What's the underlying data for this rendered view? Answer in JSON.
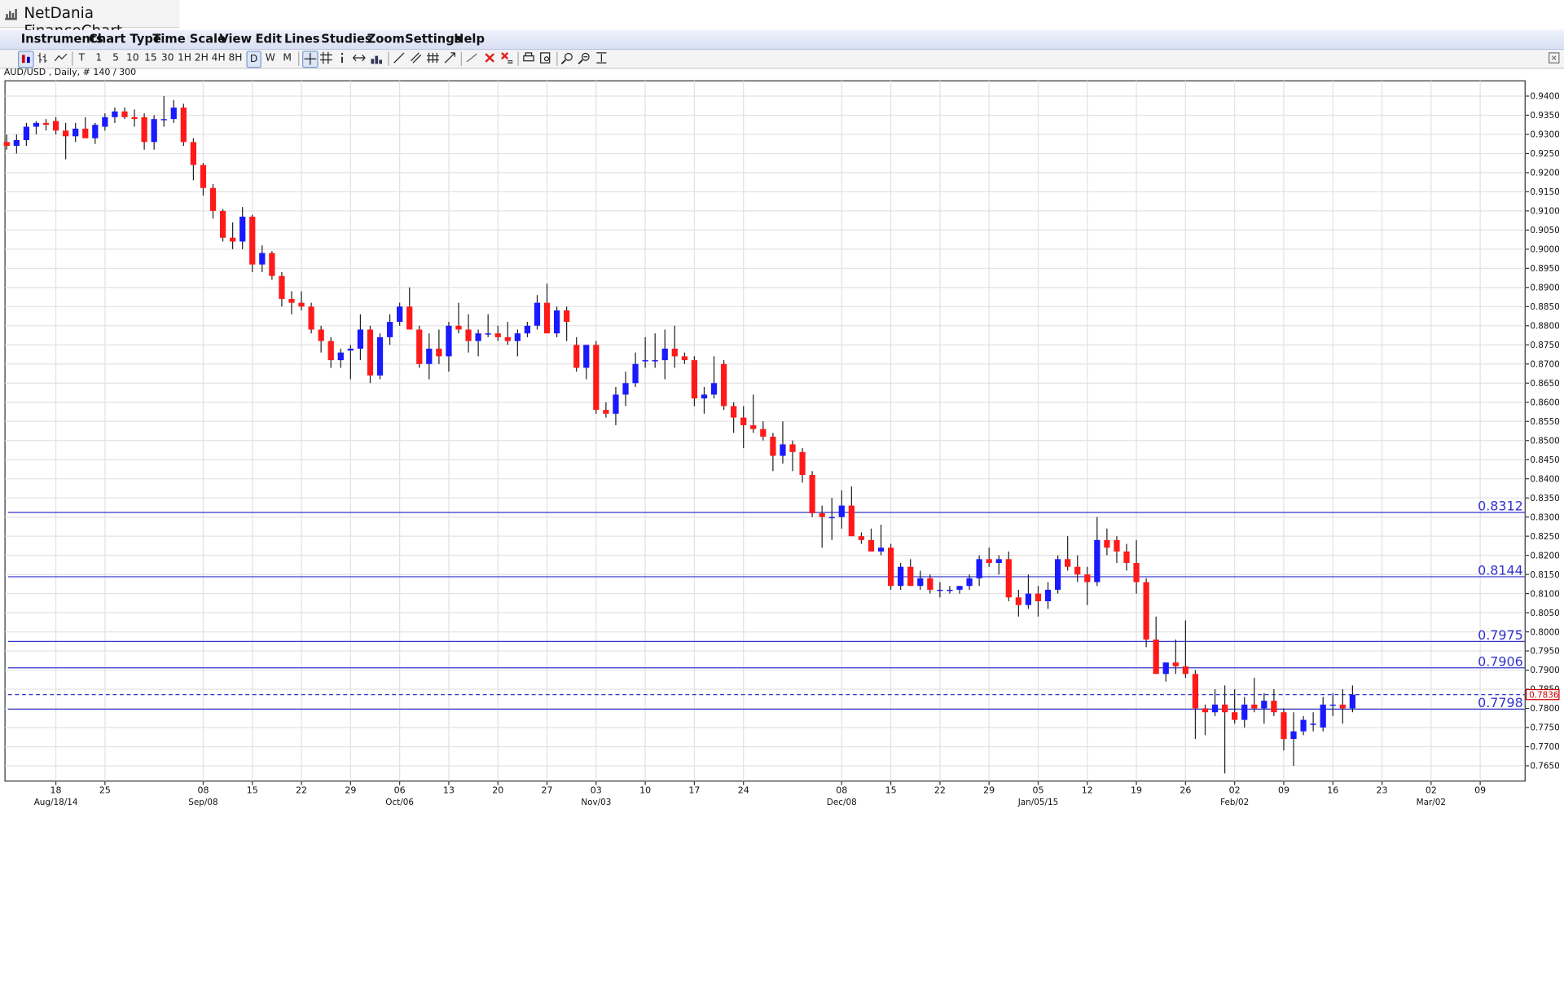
{
  "app": {
    "title": "NetDania FinanceChart"
  },
  "menu": [
    "Instruments",
    "Chart Type",
    "Time Scale",
    "View",
    "Edit",
    "Lines",
    "Studies",
    "Zoom",
    "Settings",
    "Help"
  ],
  "toolbar": {
    "timeframes": [
      "T",
      "1",
      "5",
      "10",
      "15",
      "30",
      "1H",
      "2H",
      "4H",
      "8H",
      "D",
      "W",
      "M"
    ],
    "selected": "D",
    "icons": [
      "candle-chart-icon",
      "ohlc-bar-icon",
      "line-chart-icon",
      "crosshair-icon",
      "grid-icon",
      "info-icon",
      "move-icon",
      "volume-icon",
      "trend-line-icon",
      "trend-channel-icon",
      "fibonacci-icon",
      "arrow-line-icon",
      "draw-line-icon",
      "delete-icon",
      "delete-all-icon",
      "print-icon",
      "print-preview-icon",
      "zoom-in-icon",
      "zoom-out-icon",
      "zoom-fit-icon"
    ]
  },
  "info": "AUD/USD , Daily, # 140 / 300",
  "colors": {
    "up": "#1a1aff",
    "down": "#ff1a1a",
    "level": "#3333cc",
    "grid": "#e2e2e2",
    "current": "#cc0000"
  },
  "chart_data": {
    "type": "candlestick",
    "symbol": "AUD/USD",
    "interval": "Daily",
    "start_date": "2014-08-13",
    "ylim": [
      0.761,
      0.944
    ],
    "yticks": [
      "0.9400",
      "0.9350",
      "0.9300",
      "0.9250",
      "0.9200",
      "0.9150",
      "0.9100",
      "0.9050",
      "0.9000",
      "0.8950",
      "0.8900",
      "0.8850",
      "0.8800",
      "0.8750",
      "0.8700",
      "0.8650",
      "0.8600",
      "0.8550",
      "0.8500",
      "0.8450",
      "0.8400",
      "0.8350",
      "0.8300",
      "0.8250",
      "0.8200",
      "0.8150",
      "0.8100",
      "0.8050",
      "0.8000",
      "0.7950",
      "0.7900",
      "0.7850",
      "0.7800",
      "0.7750",
      "0.7700",
      "0.7650"
    ],
    "xticks": [
      {
        "date": "2014-08-18",
        "label": "18",
        "sub": "Aug/18/14"
      },
      {
        "date": "2014-08-25",
        "label": "25",
        "sub": ""
      },
      {
        "date": "2014-09-08",
        "label": "08",
        "sub": "Sep/08"
      },
      {
        "date": "2014-09-15",
        "label": "15",
        "sub": ""
      },
      {
        "date": "2014-09-22",
        "label": "22",
        "sub": ""
      },
      {
        "date": "2014-09-29",
        "label": "29",
        "sub": ""
      },
      {
        "date": "2014-10-06",
        "label": "06",
        "sub": "Oct/06"
      },
      {
        "date": "2014-10-13",
        "label": "13",
        "sub": ""
      },
      {
        "date": "2014-10-20",
        "label": "20",
        "sub": ""
      },
      {
        "date": "2014-10-27",
        "label": "27",
        "sub": ""
      },
      {
        "date": "2014-11-03",
        "label": "03",
        "sub": "Nov/03"
      },
      {
        "date": "2014-11-10",
        "label": "10",
        "sub": ""
      },
      {
        "date": "2014-11-17",
        "label": "17",
        "sub": ""
      },
      {
        "date": "2014-11-24",
        "label": "24",
        "sub": ""
      },
      {
        "date": "2014-12-08",
        "label": "08",
        "sub": "Dec/08"
      },
      {
        "date": "2014-12-15",
        "label": "15",
        "sub": ""
      },
      {
        "date": "2014-12-22",
        "label": "22",
        "sub": ""
      },
      {
        "date": "2014-12-29",
        "label": "29",
        "sub": ""
      },
      {
        "date": "2015-01-05",
        "label": "05",
        "sub": "Jan/05/15"
      },
      {
        "date": "2015-01-12",
        "label": "12",
        "sub": ""
      },
      {
        "date": "2015-01-19",
        "label": "19",
        "sub": ""
      },
      {
        "date": "2015-01-26",
        "label": "26",
        "sub": ""
      },
      {
        "date": "2015-02-02",
        "label": "02",
        "sub": "Feb/02"
      },
      {
        "date": "2015-02-09",
        "label": "09",
        "sub": ""
      },
      {
        "date": "2015-02-16",
        "label": "16",
        "sub": ""
      },
      {
        "date": "2015-02-23",
        "label": "23",
        "sub": ""
      },
      {
        "date": "2015-03-02",
        "label": "02",
        "sub": "Mar/02"
      },
      {
        "date": "2015-03-09",
        "label": "09",
        "sub": ""
      }
    ],
    "levels": [
      {
        "value": 0.8312,
        "label": "0.8312"
      },
      {
        "value": 0.8144,
        "label": "0.8144"
      },
      {
        "value": 0.7975,
        "label": "0.7975"
      },
      {
        "value": 0.7906,
        "label": "0.7906"
      },
      {
        "value": 0.7798,
        "label": "0.7798"
      }
    ],
    "current": {
      "value": 0.7836,
      "label": "0.7836"
    },
    "candles_ohlc": [
      [
        0.928,
        0.93,
        0.926,
        0.927
      ],
      [
        0.927,
        0.93,
        0.925,
        0.9285
      ],
      [
        0.9285,
        0.933,
        0.927,
        0.932
      ],
      [
        0.932,
        0.9335,
        0.93,
        0.933
      ],
      [
        0.933,
        0.934,
        0.931,
        0.9325
      ],
      [
        0.9335,
        0.9345,
        0.93,
        0.931
      ],
      [
        0.931,
        0.933,
        0.9235,
        0.9295
      ],
      [
        0.9295,
        0.933,
        0.928,
        0.9315
      ],
      [
        0.9315,
        0.9345,
        0.9295,
        0.929
      ],
      [
        0.929,
        0.933,
        0.9275,
        0.9325
      ],
      [
        0.932,
        0.9355,
        0.931,
        0.9345
      ],
      [
        0.9345,
        0.937,
        0.933,
        0.936
      ],
      [
        0.936,
        0.937,
        0.934,
        0.9345
      ],
      [
        0.9345,
        0.9365,
        0.932,
        0.934
      ],
      [
        0.9345,
        0.9355,
        0.926,
        0.928
      ],
      [
        0.928,
        0.935,
        0.926,
        0.934
      ],
      [
        0.934,
        0.94,
        0.932,
        0.934
      ],
      [
        0.934,
        0.939,
        0.933,
        0.937
      ],
      [
        0.937,
        0.938,
        0.927,
        0.928
      ],
      [
        0.928,
        0.929,
        0.918,
        0.922
      ],
      [
        0.922,
        0.9225,
        0.914,
        0.916
      ],
      [
        0.916,
        0.917,
        0.908,
        0.91
      ],
      [
        0.91,
        0.9105,
        0.902,
        0.903
      ],
      [
        0.903,
        0.907,
        0.9,
        0.902
      ],
      [
        0.902,
        0.911,
        0.9,
        0.9085
      ],
      [
        0.9085,
        0.909,
        0.894,
        0.896
      ],
      [
        0.896,
        0.901,
        0.894,
        0.899
      ],
      [
        0.899,
        0.8995,
        0.892,
        0.893
      ],
      [
        0.893,
        0.894,
        0.885,
        0.887
      ],
      [
        0.887,
        0.889,
        0.883,
        0.886
      ],
      [
        0.886,
        0.889,
        0.884,
        0.885
      ],
      [
        0.885,
        0.886,
        0.878,
        0.879
      ],
      [
        0.879,
        0.88,
        0.873,
        0.876
      ],
      [
        0.876,
        0.877,
        0.869,
        0.871
      ],
      [
        0.871,
        0.874,
        0.869,
        0.873
      ],
      [
        0.8735,
        0.875,
        0.866,
        0.874
      ],
      [
        0.874,
        0.883,
        0.871,
        0.879
      ],
      [
        0.879,
        0.88,
        0.865,
        0.867
      ],
      [
        0.867,
        0.878,
        0.866,
        0.877
      ],
      [
        0.877,
        0.883,
        0.875,
        0.881
      ],
      [
        0.881,
        0.886,
        0.88,
        0.885
      ],
      [
        0.885,
        0.89,
        0.879,
        0.879
      ],
      [
        0.879,
        0.88,
        0.869,
        0.87
      ],
      [
        0.87,
        0.878,
        0.866,
        0.874
      ],
      [
        0.874,
        0.879,
        0.87,
        0.872
      ],
      [
        0.872,
        0.881,
        0.868,
        0.88
      ],
      [
        0.88,
        0.886,
        0.878,
        0.879
      ],
      [
        0.879,
        0.883,
        0.873,
        0.876
      ],
      [
        0.876,
        0.879,
        0.872,
        0.878
      ],
      [
        0.878,
        0.883,
        0.877,
        0.878
      ],
      [
        0.878,
        0.88,
        0.876,
        0.877
      ],
      [
        0.877,
        0.881,
        0.875,
        0.876
      ],
      [
        0.876,
        0.879,
        0.872,
        0.878
      ],
      [
        0.878,
        0.881,
        0.877,
        0.88
      ],
      [
        0.88,
        0.888,
        0.879,
        0.886
      ],
      [
        0.886,
        0.891,
        0.878,
        0.878
      ],
      [
        0.878,
        0.885,
        0.877,
        0.884
      ],
      [
        0.884,
        0.885,
        0.876,
        0.881
      ],
      [
        0.875,
        0.877,
        0.868,
        0.869
      ],
      [
        0.869,
        0.875,
        0.866,
        0.875
      ],
      [
        0.875,
        0.876,
        0.857,
        0.858
      ],
      [
        0.858,
        0.86,
        0.856,
        0.857
      ],
      [
        0.857,
        0.864,
        0.854,
        0.862
      ],
      [
        0.862,
        0.868,
        0.859,
        0.865
      ],
      [
        0.865,
        0.873,
        0.864,
        0.87
      ],
      [
        0.871,
        0.877,
        0.869,
        0.871
      ],
      [
        0.871,
        0.878,
        0.869,
        0.871
      ],
      [
        0.871,
        0.879,
        0.866,
        0.874
      ],
      [
        0.874,
        0.88,
        0.869,
        0.872
      ],
      [
        0.872,
        0.873,
        0.87,
        0.871
      ],
      [
        0.871,
        0.872,
        0.859,
        0.861
      ],
      [
        0.861,
        0.864,
        0.857,
        0.862
      ],
      [
        0.862,
        0.872,
        0.861,
        0.865
      ],
      [
        0.87,
        0.871,
        0.858,
        0.859
      ],
      [
        0.859,
        0.86,
        0.852,
        0.856
      ],
      [
        0.856,
        0.859,
        0.848,
        0.854
      ],
      [
        0.854,
        0.862,
        0.852,
        0.853
      ],
      [
        0.853,
        0.855,
        0.85,
        0.851
      ],
      [
        0.851,
        0.852,
        0.842,
        0.846
      ],
      [
        0.846,
        0.855,
        0.844,
        0.849
      ],
      [
        0.849,
        0.85,
        0.842,
        0.847
      ],
      [
        0.847,
        0.848,
        0.839,
        0.841
      ],
      [
        0.841,
        0.842,
        0.83,
        0.831
      ],
      [
        0.831,
        0.833,
        0.822,
        0.83
      ],
      [
        0.83,
        0.835,
        0.824,
        0.83
      ],
      [
        0.83,
        0.837,
        0.827,
        0.833
      ],
      [
        0.833,
        0.838,
        0.825,
        0.825
      ],
      [
        0.825,
        0.826,
        0.823,
        0.824
      ],
      [
        0.824,
        0.827,
        0.821,
        0.821
      ],
      [
        0.821,
        0.828,
        0.82,
        0.822
      ],
      [
        0.822,
        0.823,
        0.811,
        0.812
      ],
      [
        0.812,
        0.818,
        0.811,
        0.817
      ],
      [
        0.817,
        0.819,
        0.812,
        0.812
      ],
      [
        0.812,
        0.816,
        0.811,
        0.814
      ],
      [
        0.814,
        0.815,
        0.81,
        0.811
      ],
      [
        0.811,
        0.813,
        0.809,
        0.811
      ],
      [
        0.811,
        0.812,
        0.81,
        0.811
      ],
      [
        0.811,
        0.812,
        0.81,
        0.812
      ],
      [
        0.812,
        0.815,
        0.811,
        0.814
      ],
      [
        0.814,
        0.82,
        0.812,
        0.819
      ],
      [
        0.819,
        0.822,
        0.817,
        0.818
      ],
      [
        0.818,
        0.82,
        0.815,
        0.819
      ],
      [
        0.819,
        0.821,
        0.808,
        0.809
      ],
      [
        0.809,
        0.811,
        0.804,
        0.807
      ],
      [
        0.807,
        0.815,
        0.806,
        0.81
      ],
      [
        0.81,
        0.812,
        0.804,
        0.808
      ],
      [
        0.808,
        0.813,
        0.806,
        0.811
      ],
      [
        0.811,
        0.82,
        0.81,
        0.819
      ],
      [
        0.819,
        0.825,
        0.816,
        0.817
      ],
      [
        0.817,
        0.82,
        0.813,
        0.815
      ],
      [
        0.815,
        0.817,
        0.807,
        0.813
      ],
      [
        0.813,
        0.83,
        0.812,
        0.824
      ],
      [
        0.824,
        0.827,
        0.82,
        0.822
      ],
      [
        0.824,
        0.825,
        0.818,
        0.821
      ],
      [
        0.821,
        0.823,
        0.816,
        0.818
      ],
      [
        0.818,
        0.824,
        0.81,
        0.813
      ],
      [
        0.813,
        0.814,
        0.796,
        0.798
      ],
      [
        0.798,
        0.804,
        0.789,
        0.789
      ],
      [
        0.789,
        0.792,
        0.787,
        0.792
      ],
      [
        0.792,
        0.798,
        0.789,
        0.791
      ],
      [
        0.791,
        0.803,
        0.788,
        0.789
      ],
      [
        0.789,
        0.79,
        0.772,
        0.78
      ],
      [
        0.78,
        0.781,
        0.773,
        0.779
      ],
      [
        0.779,
        0.785,
        0.778,
        0.781
      ],
      [
        0.781,
        0.786,
        0.763,
        0.779
      ],
      [
        0.779,
        0.785,
        0.776,
        0.777
      ],
      [
        0.777,
        0.783,
        0.775,
        0.781
      ],
      [
        0.781,
        0.788,
        0.779,
        0.78
      ],
      [
        0.78,
        0.784,
        0.776,
        0.782
      ],
      [
        0.782,
        0.785,
        0.778,
        0.779
      ],
      [
        0.779,
        0.78,
        0.769,
        0.772
      ],
      [
        0.772,
        0.779,
        0.765,
        0.774
      ],
      [
        0.774,
        0.778,
        0.773,
        0.777
      ],
      [
        0.776,
        0.779,
        0.774,
        0.776
      ],
      [
        0.775,
        0.783,
        0.774,
        0.781
      ],
      [
        0.781,
        0.784,
        0.778,
        0.781
      ],
      [
        0.781,
        0.785,
        0.776,
        0.78
      ],
      [
        0.78,
        0.786,
        0.779,
        0.7836
      ]
    ]
  }
}
